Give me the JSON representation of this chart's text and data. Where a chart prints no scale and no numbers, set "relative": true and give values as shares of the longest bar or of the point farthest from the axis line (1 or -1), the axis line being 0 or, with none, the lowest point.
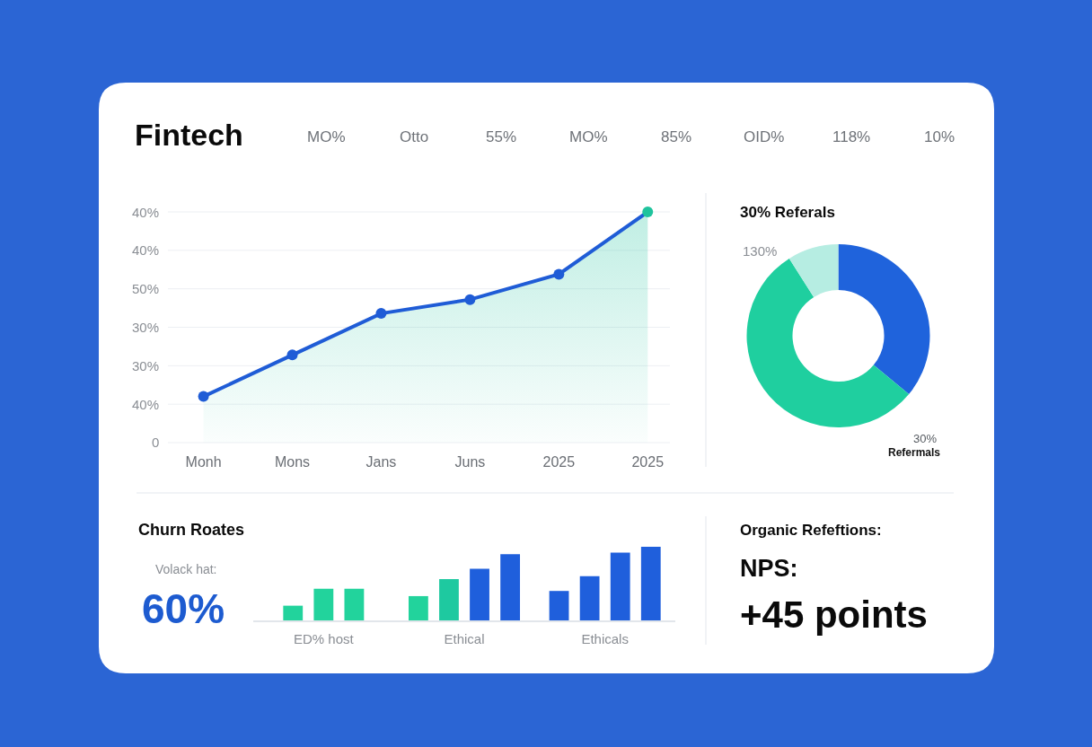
{
  "chart_data": [
    {
      "type": "other",
      "title": "Fintech",
      "annotations": [
        "MO%",
        "Otto",
        "55%",
        "MO%",
        "85%",
        "OID%",
        "118%",
        "10%"
      ]
    },
    {
      "type": "area",
      "categories": [
        "Monh",
        "Mons",
        "Jans",
        "Juns",
        "2025",
        "2025"
      ],
      "relative": true,
      "series": [
        {
          "color": "#1f5cd6",
          "colors": [
            "#1f5cd6",
            "#1f5cd6",
            "#1f5cd6",
            "#1f5cd6",
            "#1f5cd6",
            "#1fc39d"
          ],
          "values": [
            0.2,
            0.38,
            0.56,
            0.62,
            0.73,
            1
          ]
        }
      ],
      "grid": "y",
      "marker": "circle",
      "annotations": [
        "40%",
        "40%",
        "50%",
        "30%",
        "30%",
        "40%",
        "0"
      ]
    },
    {
      "type": "donut",
      "title": "30% Referals",
      "categories": [
        null,
        null,
        null
      ],
      "values": [
        36,
        55,
        9
      ],
      "colors": [
        "#1f63dc",
        "#1fcf9f",
        "#b6ede2"
      ],
      "annotations": [
        "130%",
        "30%",
        "Refermals"
      ]
    },
    {
      "type": "bar",
      "title": "Churn Roates",
      "categories": [
        "ED% host",
        "Ethical",
        "Ethicals"
      ],
      "relative": true,
      "series": [
        {
          "colors": [
            "#22d39c",
            "#22d39c",
            "#1f5fdc"
          ],
          "values": [
            0.2,
            0.33,
            0.4
          ]
        },
        {
          "colors": [
            "#22d39c",
            "#1ec9a0",
            "#1f5fdc"
          ],
          "values": [
            0.43,
            0.56,
            0.6
          ]
        },
        {
          "colors": [
            "#22d39c",
            "#1f5fdc",
            "#1f5fdc"
          ],
          "values": [
            0.43,
            0.7,
            0.92
          ]
        },
        {
          "colors": [
            null,
            "#1f5fdc",
            "#1f5fdc"
          ],
          "values": [
            null,
            0.9,
            1
          ]
        }
      ],
      "annotations": [
        "Volack hat:",
        "60%"
      ]
    },
    {
      "type": "other",
      "title": "Organic Refeftions:",
      "annotations": [
        "NPS:",
        "+45 points"
      ]
    }
  ]
}
